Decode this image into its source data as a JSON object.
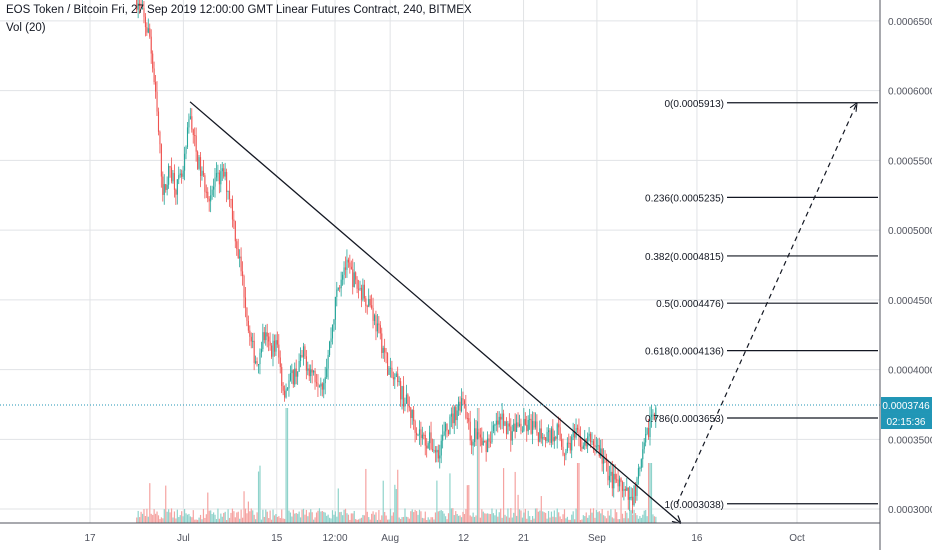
{
  "header": {
    "symbol_line": "EOS Token / Bitcoin Fri, 27 Sep 2019 12:00:00 GMT Linear Futures Contract, 240, BITMEX",
    "volume_label": "Vol (20)"
  },
  "colors": {
    "up": "#26a69a",
    "down": "#ef5350",
    "up_volume": "#8fd3cb",
    "down_volume": "#f5a3a1",
    "grid": "#e1e3e6",
    "price_line": "#2196b6",
    "drawing": "#131722",
    "price_tag": "#2196b6"
  },
  "chart_data": {
    "type": "candlestick",
    "title": "EOS Token / Bitcoin Fri, 27 Sep 2019 12:00:00 GMT Linear Futures Contract, 240, BITMEX",
    "ylabel": "",
    "xlabel": "",
    "ylim": [
      0.00029,
      0.000665
    ],
    "y_ticks": [
      "0.0003000",
      "0.0003500",
      "0.0004000",
      "0.0004500",
      "0.0005000",
      "0.0005500",
      "0.0006000",
      "0.0006500"
    ],
    "y_tick_values": [
      0.0003,
      0.00035,
      0.0004,
      0.00045,
      0.0005,
      0.00055,
      0.0006,
      0.00065
    ],
    "x_ticks": [
      "17",
      "Jul",
      "15",
      "12:00",
      "Aug",
      "12",
      "21",
      "Sep",
      "16",
      "Oct"
    ],
    "x_tick_dates": [
      "2019-06-17",
      "2019-07-01",
      "2019-07-15",
      "2019-07-24",
      "2019-08-01",
      "2019-08-12",
      "2019-08-21",
      "2019-09-01",
      "2019-09-16",
      "2019-10-01"
    ],
    "grid": true,
    "interval": "240",
    "price_series": [
      [
        "2019-06-24",
        0.000665
      ],
      [
        "2019-06-26",
        0.000638
      ],
      [
        "2019-06-27",
        0.000585
      ],
      [
        "2019-06-28",
        0.000525
      ],
      [
        "2019-06-29",
        0.000545
      ],
      [
        "2019-06-30",
        0.00053
      ],
      [
        "2019-07-01",
        0.00054
      ],
      [
        "2019-07-02",
        0.000585
      ],
      [
        "2019-07-03",
        0.000552
      ],
      [
        "2019-07-04",
        0.000535
      ],
      [
        "2019-07-05",
        0.000525
      ],
      [
        "2019-07-06",
        0.000535
      ],
      [
        "2019-07-07",
        0.00054
      ],
      [
        "2019-07-08",
        0.000525
      ],
      [
        "2019-07-09",
        0.00049
      ],
      [
        "2019-07-10",
        0.00046
      ],
      [
        "2019-07-11",
        0.00042
      ],
      [
        "2019-07-12",
        0.000405
      ],
      [
        "2019-07-13",
        0.000425
      ],
      [
        "2019-07-14",
        0.000415
      ],
      [
        "2019-07-15",
        0.000418
      ],
      [
        "2019-07-16",
        0.000385
      ],
      [
        "2019-07-17",
        0.000392
      ],
      [
        "2019-07-18",
        0.0004
      ],
      [
        "2019-07-19",
        0.00041
      ],
      [
        "2019-07-20",
        0.0004
      ],
      [
        "2019-07-21",
        0.000395
      ],
      [
        "2019-07-22",
        0.000392
      ],
      [
        "2019-07-23",
        0.00042
      ],
      [
        "2019-07-24",
        0.000455
      ],
      [
        "2019-07-25",
        0.000475
      ],
      [
        "2019-07-26",
        0.00047
      ],
      [
        "2019-07-27",
        0.00046
      ],
      [
        "2019-07-28",
        0.000455
      ],
      [
        "2019-07-29",
        0.000448
      ],
      [
        "2019-07-30",
        0.00043
      ],
      [
        "2019-07-31",
        0.000415
      ],
      [
        "2019-08-01",
        0.000395
      ],
      [
        "2019-08-02",
        0.00039
      ],
      [
        "2019-08-03",
        0.00038
      ],
      [
        "2019-08-04",
        0.00037
      ],
      [
        "2019-08-05",
        0.000358
      ],
      [
        "2019-08-06",
        0.00035
      ],
      [
        "2019-08-07",
        0.000348
      ],
      [
        "2019-08-08",
        0.00034
      ],
      [
        "2019-08-09",
        0.000352
      ],
      [
        "2019-08-10",
        0.000362
      ],
      [
        "2019-08-11",
        0.000372
      ],
      [
        "2019-08-12",
        0.000382
      ],
      [
        "2019-08-13",
        0.00035
      ],
      [
        "2019-08-14",
        0.000355
      ],
      [
        "2019-08-15",
        0.000345
      ],
      [
        "2019-08-16",
        0.000352
      ],
      [
        "2019-08-17",
        0.00036
      ],
      [
        "2019-08-18",
        0.000365
      ],
      [
        "2019-08-19",
        0.000355
      ],
      [
        "2019-08-20",
        0.00036
      ],
      [
        "2019-08-21",
        0.000358
      ],
      [
        "2019-08-22",
        0.00036
      ],
      [
        "2019-08-23",
        0.000355
      ],
      [
        "2019-08-24",
        0.000355
      ],
      [
        "2019-08-25",
        0.000352
      ],
      [
        "2019-08-26",
        0.000358
      ],
      [
        "2019-08-27",
        0.000342
      ],
      [
        "2019-08-28",
        0.000348
      ],
      [
        "2019-08-29",
        0.000352
      ],
      [
        "2019-08-30",
        0.000345
      ],
      [
        "2019-08-31",
        0.00035
      ],
      [
        "2019-09-01",
        0.000345
      ],
      [
        "2019-09-02",
        0.000335
      ],
      [
        "2019-09-03",
        0.000322
      ],
      [
        "2019-09-04",
        0.000318
      ],
      [
        "2019-09-05",
        0.000312
      ],
      [
        "2019-09-06",
        0.000305
      ],
      [
        "2019-09-07",
        0.000318
      ],
      [
        "2019-09-08",
        0.00034
      ],
      [
        "2019-09-09",
        0.000365
      ],
      [
        "2019-09-10",
        0.000375
      ]
    ],
    "last_price": {
      "value": 0.0003746,
      "label": "0.0003746",
      "countdown": "02:15:36"
    },
    "trendline": {
      "from": [
        "2019-07-02",
        0.000592
      ],
      "to": [
        "2019-09-13",
        0.000294
      ]
    },
    "projection": {
      "from": [
        "2019-09-13",
        0.0003038
      ],
      "to": [
        "2019-10-10",
        0.0005913
      ]
    },
    "fib_levels": [
      {
        "ratio": 0,
        "label": "0(0.0005913)",
        "value": 0.0005913
      },
      {
        "ratio": 0.236,
        "label": "0.236(0.0005235)",
        "value": 0.0005235
      },
      {
        "ratio": 0.382,
        "label": "0.382(0.0004815)",
        "value": 0.0004815
      },
      {
        "ratio": 0.5,
        "label": "0.5(0.0004476)",
        "value": 0.0004476
      },
      {
        "ratio": 0.618,
        "label": "0.618(0.0004136)",
        "value": 0.0004136
      },
      {
        "ratio": 0.786,
        "label": "0.786(0.0003653)",
        "value": 0.0003653
      },
      {
        "ratio": 1,
        "label": "1(0.0003038)",
        "value": 0.0003038
      }
    ]
  }
}
